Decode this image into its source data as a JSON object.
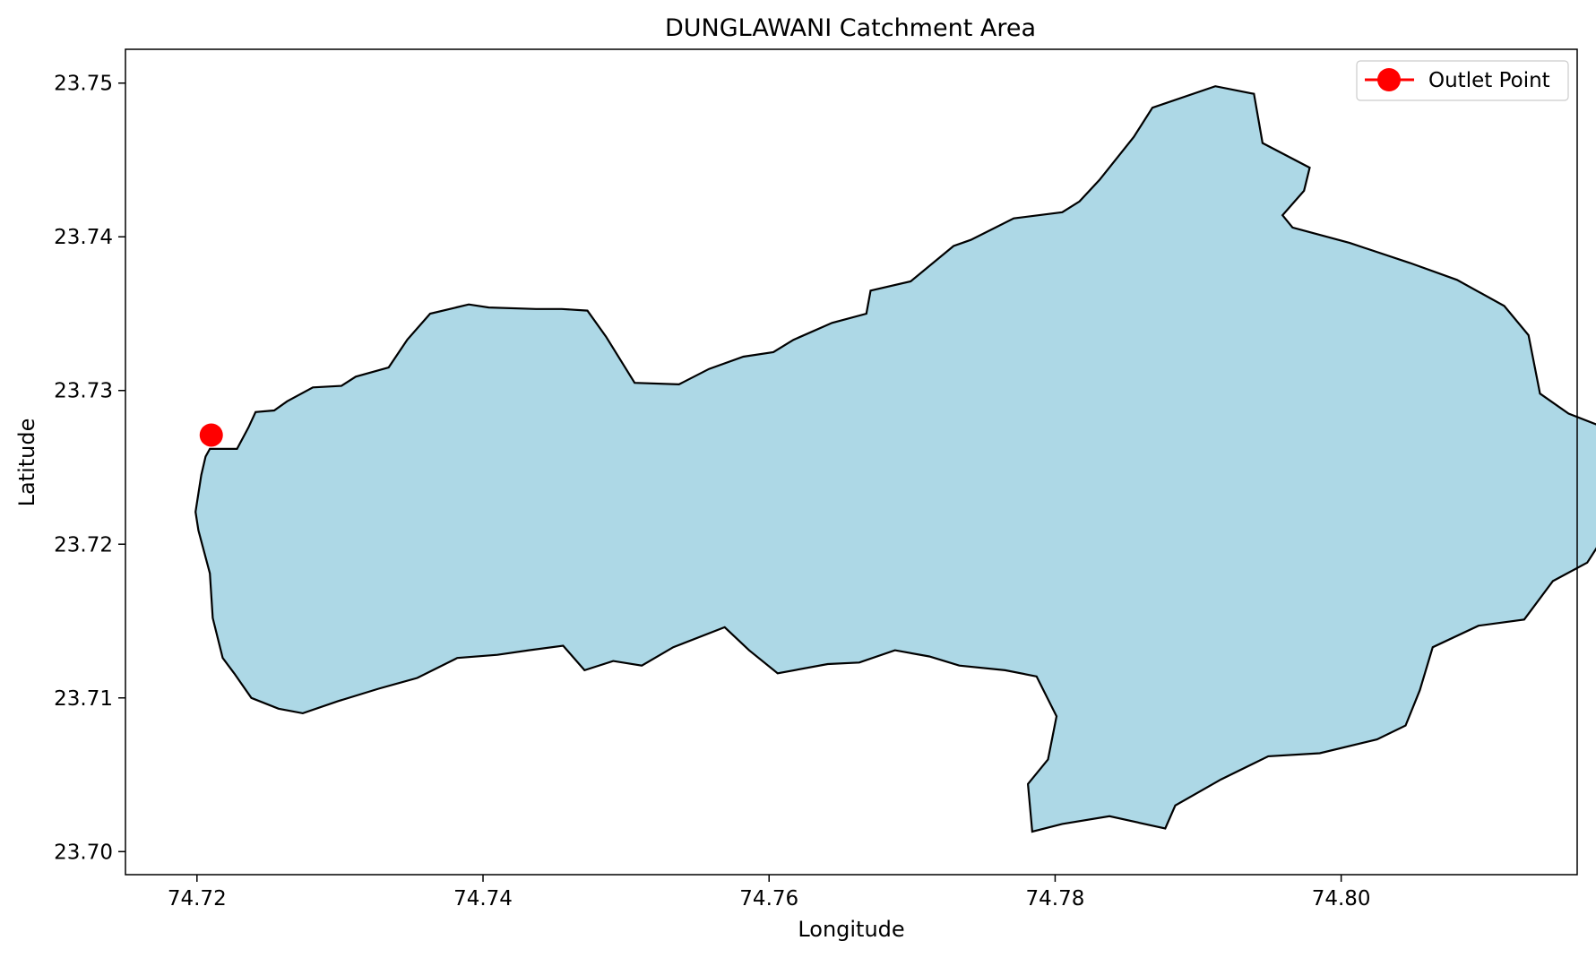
{
  "title": "DUNGLAWANI Catchment Area",
  "xlabel": "Longitude",
  "ylabel": "Latitude",
  "legend": {
    "position": "upper-right",
    "label": "Outlet Point"
  },
  "colors": {
    "fill": "#add8e6",
    "edge": "#000000",
    "outlet": "#ff0000"
  },
  "axes": {
    "xlim": [
      74.715,
      74.8165
    ],
    "ylim": [
      23.6985,
      23.7522
    ],
    "xticks": [
      74.72,
      74.74,
      74.76,
      74.78,
      74.8
    ],
    "xtick_labels": [
      "74.72",
      "74.74",
      "74.76",
      "74.78",
      "74.80"
    ],
    "yticks": [
      23.7,
      23.71,
      23.72,
      23.73,
      23.74,
      23.75
    ],
    "ytick_labels": [
      "23.70",
      "23.71",
      "23.72",
      "23.73",
      "23.74",
      "23.75"
    ]
  },
  "outlet_point": {
    "lon": 74.721,
    "lat": 23.7271
  },
  "catchment_boundary": [
    [
      74.7209,
      23.7262
    ],
    [
      74.7228,
      23.7262
    ],
    [
      74.7236,
      23.7276
    ],
    [
      74.7241,
      23.7286
    ],
    [
      74.7254,
      23.7287
    ],
    [
      74.7263,
      23.7293
    ],
    [
      74.7281,
      23.7302
    ],
    [
      74.7301,
      23.7303
    ],
    [
      74.7311,
      23.7309
    ],
    [
      74.7334,
      23.7315
    ],
    [
      74.7347,
      23.7333
    ],
    [
      74.7363,
      23.735
    ],
    [
      74.739,
      23.7356
    ],
    [
      74.7404,
      23.7354
    ],
    [
      74.7437,
      23.7353
    ],
    [
      74.7455,
      23.7353
    ],
    [
      74.7473,
      23.7352
    ],
    [
      74.7486,
      23.7335
    ],
    [
      74.7506,
      23.7305
    ],
    [
      74.7537,
      23.7304
    ],
    [
      74.7558,
      23.7314
    ],
    [
      74.7582,
      23.7322
    ],
    [
      74.7603,
      23.7325
    ],
    [
      74.7617,
      23.7333
    ],
    [
      74.7644,
      23.7344
    ],
    [
      74.7668,
      23.735
    ],
    [
      74.7671,
      23.7365
    ],
    [
      74.7699,
      23.7371
    ],
    [
      74.7729,
      23.7394
    ],
    [
      74.7741,
      23.7398
    ],
    [
      74.7771,
      23.7412
    ],
    [
      74.7805,
      23.7416
    ],
    [
      74.7817,
      23.7423
    ],
    [
      74.7831,
      23.7437
    ],
    [
      74.7855,
      23.7465
    ],
    [
      74.7868,
      23.7484
    ],
    [
      74.7912,
      23.7498
    ],
    [
      74.7939,
      23.7493
    ],
    [
      74.7945,
      23.7461
    ],
    [
      74.7978,
      23.7445
    ],
    [
      74.7974,
      23.743
    ],
    [
      74.7959,
      23.7414
    ],
    [
      74.7966,
      23.7406
    ],
    [
      74.8006,
      23.7396
    ],
    [
      74.8048,
      23.7383
    ],
    [
      74.8081,
      23.7372
    ],
    [
      74.8114,
      23.7355
    ],
    [
      74.8131,
      23.7336
    ],
    [
      74.8139,
      23.7298
    ],
    [
      74.8159,
      23.7285
    ],
    [
      74.8181,
      23.7277
    ],
    [
      74.8188,
      23.7248
    ],
    [
      74.819,
      23.7214
    ],
    [
      74.8172,
      23.7188
    ],
    [
      74.8148,
      23.7176
    ],
    [
      74.8128,
      23.7151
    ],
    [
      74.8096,
      23.7147
    ],
    [
      74.8064,
      23.7133
    ],
    [
      74.8055,
      23.7105
    ],
    [
      74.8045,
      23.7082
    ],
    [
      74.8025,
      23.7073
    ],
    [
      74.7985,
      23.7064
    ],
    [
      74.7949,
      23.7062
    ],
    [
      74.7916,
      23.7047
    ],
    [
      74.7884,
      23.703
    ],
    [
      74.7877,
      23.7015
    ],
    [
      74.7838,
      23.7023
    ],
    [
      74.7805,
      23.7018
    ],
    [
      74.7784,
      23.7013
    ],
    [
      74.7781,
      23.7044
    ],
    [
      74.7795,
      23.706
    ],
    [
      74.7801,
      23.7088
    ],
    [
      74.7787,
      23.7114
    ],
    [
      74.7765,
      23.7118
    ],
    [
      74.7733,
      23.7121
    ],
    [
      74.7712,
      23.7127
    ],
    [
      74.7688,
      23.7131
    ],
    [
      74.7663,
      23.7123
    ],
    [
      74.7641,
      23.7122
    ],
    [
      74.7606,
      23.7116
    ],
    [
      74.7586,
      23.7131
    ],
    [
      74.7569,
      23.7146
    ],
    [
      74.7533,
      23.7133
    ],
    [
      74.7511,
      23.7121
    ],
    [
      74.7491,
      23.7124
    ],
    [
      74.7471,
      23.7118
    ],
    [
      74.7456,
      23.7134
    ],
    [
      74.7432,
      23.7131
    ],
    [
      74.741,
      23.7128
    ],
    [
      74.7382,
      23.7126
    ],
    [
      74.7354,
      23.7113
    ],
    [
      74.7327,
      23.7106
    ],
    [
      74.7299,
      23.7098
    ],
    [
      74.7274,
      23.709
    ],
    [
      74.7257,
      23.7093
    ],
    [
      74.7238,
      23.71
    ],
    [
      74.7226,
      23.7116
    ],
    [
      74.7218,
      23.7126
    ],
    [
      74.7211,
      23.7152
    ],
    [
      74.7209,
      23.7181
    ],
    [
      74.7201,
      23.7209
    ],
    [
      74.7199,
      23.7221
    ],
    [
      74.7203,
      23.7245
    ],
    [
      74.7206,
      23.7257
    ]
  ]
}
